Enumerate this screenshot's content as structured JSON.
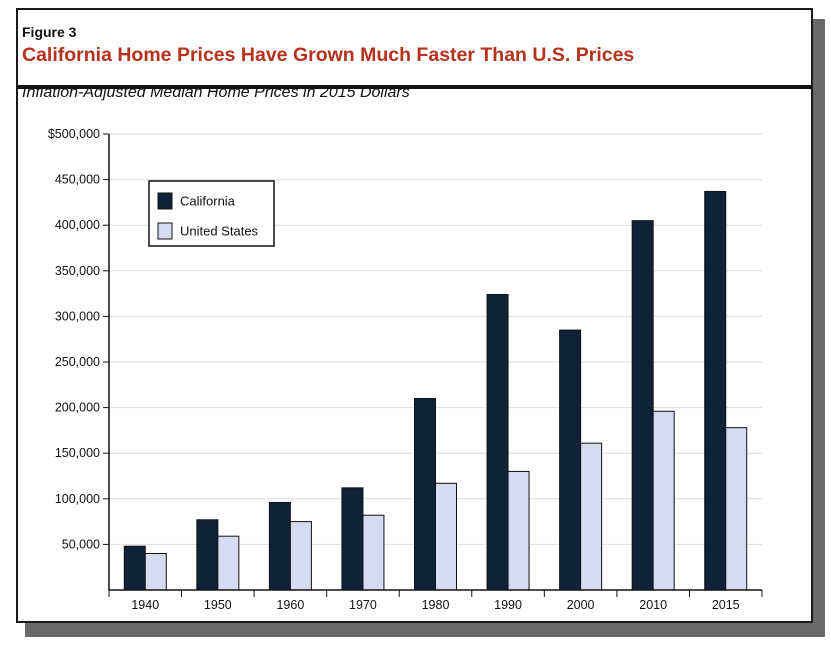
{
  "figure_label": "Figure 3",
  "title": "California Home Prices Have Grown Much Faster Than U.S. Prices",
  "subtitle": "Inflation-Adjusted Median Home Prices in 2015 Dollars",
  "colors": {
    "california": "#0f2238",
    "united_states": "#d3dcf0",
    "title": "#b5321c"
  },
  "chart_data": {
    "type": "bar",
    "title": "California Home Prices Have Grown Much Faster Than U.S. Prices",
    "subtitle": "Inflation-Adjusted Median Home Prices in 2015 Dollars",
    "xlabel": "",
    "ylabel": "",
    "categories": [
      "1940",
      "1950",
      "1960",
      "1970",
      "1980",
      "1990",
      "2000",
      "2010",
      "2015"
    ],
    "series": [
      {
        "name": "California",
        "values": [
          48000,
          77000,
          96000,
          112000,
          210000,
          324000,
          285000,
          405000,
          437000
        ]
      },
      {
        "name": "United States",
        "values": [
          40000,
          59000,
          75000,
          82000,
          117000,
          130000,
          161000,
          196000,
          178000
        ]
      }
    ],
    "ylim": [
      0,
      500000
    ],
    "yticks": [
      50000,
      100000,
      150000,
      200000,
      250000,
      300000,
      350000,
      400000,
      450000,
      500000
    ],
    "ytick_labels": [
      "50,000",
      "100,000",
      "150,000",
      "200,000",
      "250,000",
      "300,000",
      "350,000",
      "400,000",
      "450,000",
      "$500,000"
    ],
    "grid": true,
    "legend_position": "top-left"
  }
}
